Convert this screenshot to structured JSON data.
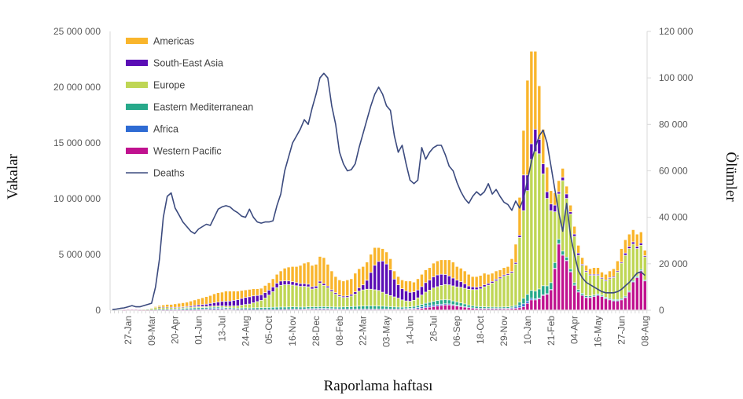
{
  "chart_data": {
    "type": "bar",
    "stacked": true,
    "xlabel": "Raporlama haftası",
    "ylabel": "Vakalar",
    "y2label": "Ölümler",
    "ylim": [
      0,
      25000000
    ],
    "y2lim": [
      0,
      120000
    ],
    "y_tick_labels": [
      "0",
      "5 000 000",
      "10 000 000",
      "15 000 000",
      "20 000 000",
      "25 000 000"
    ],
    "y2_tick_labels": [
      "0",
      "20 000",
      "40 000",
      "60 000",
      "80 000",
      "100 000",
      "120 000"
    ],
    "x_tick_labels": [
      "27-Jan",
      "09-Mar",
      "20-Apr",
      "01-Jun",
      "13-Jul",
      "24-Aug",
      "05-Oct",
      "16-Nov",
      "28-Dec",
      "08-Feb",
      "22-Mar",
      "03-May",
      "14-Jun",
      "26-Jul",
      "06-Sep",
      "18-Oct",
      "29-Nov",
      "10-Jan",
      "21-Feb",
      "04-Apr",
      "16-May",
      "27-Jun",
      "08-Aug"
    ],
    "grid": false,
    "legend_position": "top-left",
    "series": [
      {
        "name": "Western Pacific",
        "color": "#C0128F",
        "axis": "left",
        "values": [
          0,
          0,
          0,
          10000,
          20000,
          20000,
          20000,
          10000,
          10000,
          10000,
          10000,
          10000,
          20000,
          10000,
          10000,
          10000,
          10000,
          10000,
          10000,
          10000,
          10000,
          10000,
          10000,
          20000,
          20000,
          30000,
          30000,
          40000,
          40000,
          30000,
          30000,
          30000,
          20000,
          20000,
          20000,
          20000,
          20000,
          20000,
          20000,
          20000,
          20000,
          20000,
          20000,
          20000,
          20000,
          20000,
          30000,
          30000,
          30000,
          30000,
          40000,
          40000,
          40000,
          50000,
          50000,
          50000,
          50000,
          50000,
          50000,
          50000,
          40000,
          40000,
          40000,
          40000,
          40000,
          40000,
          40000,
          40000,
          40000,
          50000,
          50000,
          50000,
          50000,
          50000,
          50000,
          60000,
          70000,
          80000,
          100000,
          150000,
          200000,
          250000,
          300000,
          350000,
          400000,
          450000,
          450000,
          400000,
          350000,
          300000,
          250000,
          200000,
          150000,
          120000,
          100000,
          100000,
          100000,
          100000,
          100000,
          100000,
          100000,
          100000,
          120000,
          150000,
          200000,
          300000,
          600000,
          900000,
          900000,
          1000000,
          1300000,
          1400000,
          1800000,
          3700000,
          5900000,
          4900000,
          4400000,
          3400000,
          2200000,
          1600000,
          1300000,
          1100000,
          1100000,
          1200000,
          1300000,
          1200000,
          1000000,
          900000,
          800000,
          800000,
          900000,
          1100000,
          1600000,
          2500000,
          2900000,
          3500000,
          2600000
        ]
      },
      {
        "name": "Africa",
        "color": "#2E6BD3",
        "axis": "left",
        "values": [
          0,
          0,
          0,
          0,
          0,
          0,
          0,
          0,
          0,
          0,
          0,
          0,
          10000,
          10000,
          10000,
          10000,
          10000,
          20000,
          20000,
          30000,
          30000,
          40000,
          50000,
          60000,
          80000,
          100000,
          120000,
          120000,
          100000,
          80000,
          60000,
          50000,
          50000,
          40000,
          40000,
          30000,
          30000,
          30000,
          30000,
          30000,
          30000,
          30000,
          30000,
          40000,
          40000,
          50000,
          50000,
          50000,
          50000,
          60000,
          70000,
          80000,
          90000,
          90000,
          90000,
          80000,
          70000,
          60000,
          50000,
          40000,
          40000,
          40000,
          40000,
          40000,
          40000,
          40000,
          40000,
          40000,
          40000,
          40000,
          40000,
          40000,
          40000,
          50000,
          50000,
          60000,
          70000,
          90000,
          120000,
          140000,
          150000,
          150000,
          150000,
          140000,
          120000,
          100000,
          90000,
          80000,
          70000,
          60000,
          50000,
          50000,
          40000,
          40000,
          40000,
          40000,
          40000,
          40000,
          40000,
          40000,
          50000,
          60000,
          80000,
          120000,
          200000,
          250000,
          200000,
          150000,
          100000,
          80000,
          70000,
          60000,
          50000,
          50000,
          50000,
          40000,
          40000,
          40000,
          40000,
          40000,
          40000,
          40000,
          40000,
          40000,
          40000,
          40000,
          40000,
          40000,
          40000,
          40000,
          40000,
          40000,
          40000,
          40000,
          40000,
          40000
        ]
      },
      {
        "name": "Eastern Mediterranean",
        "color": "#27A98A",
        "axis": "left",
        "values": [
          0,
          0,
          0,
          0,
          0,
          0,
          0,
          0,
          0,
          10000,
          10000,
          20000,
          30000,
          40000,
          50000,
          60000,
          70000,
          80000,
          100000,
          120000,
          130000,
          140000,
          140000,
          130000,
          120000,
          110000,
          100000,
          100000,
          100000,
          100000,
          100000,
          100000,
          100000,
          120000,
          130000,
          130000,
          140000,
          150000,
          160000,
          170000,
          180000,
          190000,
          200000,
          200000,
          200000,
          200000,
          200000,
          190000,
          180000,
          170000,
          170000,
          160000,
          160000,
          160000,
          160000,
          160000,
          150000,
          150000,
          160000,
          180000,
          200000,
          220000,
          240000,
          260000,
          270000,
          280000,
          280000,
          280000,
          270000,
          250000,
          230000,
          200000,
          180000,
          160000,
          150000,
          140000,
          140000,
          150000,
          170000,
          200000,
          250000,
          280000,
          320000,
          350000,
          380000,
          380000,
          360000,
          330000,
          300000,
          270000,
          240000,
          200000,
          180000,
          160000,
          150000,
          140000,
          130000,
          120000,
          120000,
          120000,
          120000,
          120000,
          130000,
          150000,
          300000,
          500000,
          600000,
          700000,
          700000,
          800000,
          800000,
          700000,
          600000,
          500000,
          400000,
          350000,
          300000,
          250000,
          200000,
          180000,
          150000,
          130000,
          120000,
          100000,
          100000,
          100000,
          100000,
          100000,
          100000,
          100000,
          100000,
          100000,
          100000,
          100000,
          100000,
          100000,
          100000
        ]
      },
      {
        "name": "Europe",
        "color": "#BFD655",
        "axis": "left",
        "values": [
          0,
          0,
          0,
          0,
          0,
          0,
          0,
          0,
          10000,
          30000,
          100000,
          170000,
          200000,
          180000,
          170000,
          140000,
          120000,
          100000,
          100000,
          90000,
          90000,
          90000,
          100000,
          100000,
          100000,
          100000,
          100000,
          100000,
          120000,
          140000,
          160000,
          180000,
          200000,
          250000,
          300000,
          350000,
          450000,
          550000,
          650000,
          850000,
          1100000,
          1400000,
          1750000,
          1950000,
          2000000,
          2000000,
          1950000,
          1900000,
          1850000,
          1850000,
          1800000,
          1600000,
          1650000,
          2100000,
          1900000,
          1700000,
          1400000,
          1150000,
          950000,
          850000,
          850000,
          950000,
          1100000,
          1350000,
          1450000,
          1500000,
          1500000,
          1450000,
          1400000,
          1250000,
          1100000,
          1000000,
          900000,
          800000,
          650000,
          550000,
          500000,
          550000,
          700000,
          850000,
          1000000,
          1100000,
          1200000,
          1250000,
          1300000,
          1350000,
          1350000,
          1350000,
          1350000,
          1400000,
          1400000,
          1400000,
          1450000,
          1500000,
          1600000,
          1800000,
          1950000,
          2150000,
          2350000,
          2550000,
          2750000,
          2850000,
          3000000,
          3700000,
          5800000,
          7850000,
          9300000,
          11750000,
          12500000,
          12120000,
          10030000,
          7840000,
          6450000,
          4550000,
          4050000,
          6310000,
          5260000,
          4910000,
          4160000,
          3080000,
          2510000,
          2130000,
          1840000,
          1760000,
          1660000,
          1460000,
          1460000,
          1760000,
          1960000,
          2460000,
          3160000,
          3660000,
          3760000,
          3260000,
          2460000,
          2160000,
          2060000
        ]
      },
      {
        "name": "South-East Asia",
        "color": "#5A0DB5",
        "axis": "left",
        "values": [
          0,
          0,
          0,
          0,
          0,
          0,
          0,
          0,
          0,
          0,
          0,
          0,
          10000,
          10000,
          20000,
          20000,
          30000,
          40000,
          50000,
          70000,
          100000,
          120000,
          150000,
          170000,
          200000,
          250000,
          300000,
          350000,
          400000,
          420000,
          450000,
          500000,
          550000,
          600000,
          630000,
          650000,
          620000,
          550000,
          500000,
          480000,
          450000,
          420000,
          400000,
          380000,
          350000,
          330000,
          300000,
          280000,
          260000,
          250000,
          230000,
          200000,
          200000,
          180000,
          170000,
          150000,
          140000,
          130000,
          120000,
          120000,
          130000,
          150000,
          200000,
          300000,
          450000,
          800000,
          1500000,
          2200000,
          2600000,
          2800000,
          2700000,
          2300000,
          1600000,
          1200000,
          1000000,
          900000,
          800000,
          750000,
          700000,
          750000,
          850000,
          900000,
          1000000,
          1050000,
          1000000,
          900000,
          800000,
          700000,
          600000,
          500000,
          400000,
          300000,
          250000,
          220000,
          200000,
          180000,
          160000,
          150000,
          140000,
          130000,
          120000,
          120000,
          120000,
          130000,
          200000,
          3200000,
          1400000,
          1400000,
          2000000,
          1300000,
          900000,
          600000,
          600000,
          600000,
          200000,
          300000,
          400000,
          200000,
          200000,
          200000,
          100000,
          100000,
          100000,
          100000,
          100000,
          100000,
          100000,
          100000,
          100000,
          100000,
          100000,
          200000,
          200000,
          200000,
          200000,
          200000,
          100000
        ]
      },
      {
        "name": "Americas",
        "color": "#F9B52C",
        "axis": "left",
        "values": [
          0,
          0,
          0,
          0,
          0,
          0,
          0,
          0,
          0,
          0,
          30000,
          100000,
          130000,
          200000,
          240000,
          260000,
          310000,
          350000,
          370000,
          380000,
          440000,
          500000,
          550000,
          620000,
          680000,
          710000,
          800000,
          840000,
          840000,
          930000,
          900000,
          840000,
          780000,
          720000,
          680000,
          670000,
          640000,
          600000,
          590000,
          650000,
          670000,
          740000,
          800000,
          910000,
          1140000,
          1250000,
          1370000,
          1450000,
          1630000,
          1840000,
          1990000,
          1920000,
          1960000,
          2220000,
          2330000,
          1960000,
          1690000,
          1460000,
          1370000,
          1360000,
          1440000,
          1400000,
          1680000,
          1710000,
          1650000,
          1640000,
          1640000,
          1590000,
          1250000,
          1110000,
          1080000,
          1010000,
          730000,
          740000,
          800000,
          890000,
          1020000,
          880000,
          1010000,
          1110000,
          1150000,
          1120000,
          1230000,
          1260000,
          1300000,
          1320000,
          1450000,
          1440000,
          1230000,
          1220000,
          1160000,
          1050000,
          930000,
          960000,
          1010000,
          1040000,
          820000,
          740000,
          750000,
          660000,
          660000,
          650000,
          1150000,
          1650000,
          3400000,
          4000000,
          8500000,
          8300000,
          7000000,
          4800000,
          3100000,
          2200000,
          1200000,
          1100000,
          1000000,
          800000,
          700000,
          600000,
          700000,
          700000,
          600000,
          500000,
          500000,
          600000,
          600000,
          500000,
          500000,
          600000,
          700000,
          900000,
          1200000,
          1200000,
          1100000,
          1100000,
          1100000,
          1000000,
          500000
        ]
      },
      {
        "name": "Deaths",
        "type": "line",
        "color": "#3B4A7E",
        "axis": "right",
        "values": [
          300,
          500,
          800,
          1000,
          1500,
          2000,
          1500,
          1500,
          2000,
          2500,
          3000,
          10000,
          22000,
          40000,
          49000,
          50500,
          44000,
          41000,
          38000,
          36000,
          34000,
          33000,
          35000,
          36000,
          37000,
          36500,
          40000,
          43500,
          44500,
          45000,
          44500,
          43000,
          42000,
          40500,
          40000,
          43500,
          40000,
          38000,
          37500,
          38000,
          38000,
          38500,
          45000,
          50000,
          60000,
          66000,
          72000,
          75000,
          78000,
          82000,
          80000,
          87000,
          93000,
          100000,
          102000,
          100000,
          88000,
          80000,
          68000,
          63000,
          60000,
          60500,
          63000,
          70000,
          76000,
          82000,
          88000,
          93000,
          96000,
          93000,
          88000,
          86000,
          75000,
          68000,
          71000,
          63000,
          56000,
          54500,
          56000,
          70000,
          65000,
          68000,
          70000,
          71000,
          71000,
          67000,
          62000,
          60000,
          55000,
          51000,
          48000,
          46000,
          49000,
          51000,
          49500,
          51000,
          54500,
          50000,
          52000,
          49000,
          46500,
          45500,
          43000,
          47000,
          44000,
          48000,
          56000,
          64000,
          70000,
          75000,
          77500,
          72000,
          62000,
          52000,
          42000,
          34000,
          46000,
          32000,
          24000,
          17000,
          14000,
          12000,
          11000,
          10000,
          9000,
          8000,
          7500,
          7500,
          7500,
          8000,
          9000,
          10500,
          12000,
          14000,
          16000,
          16500,
          15000
        ]
      }
    ],
    "legend": [
      "Americas",
      "South-East Asia",
      "Europe",
      "Eastern Mediterranean",
      "Africa",
      "Western Pacific",
      "Deaths"
    ]
  }
}
